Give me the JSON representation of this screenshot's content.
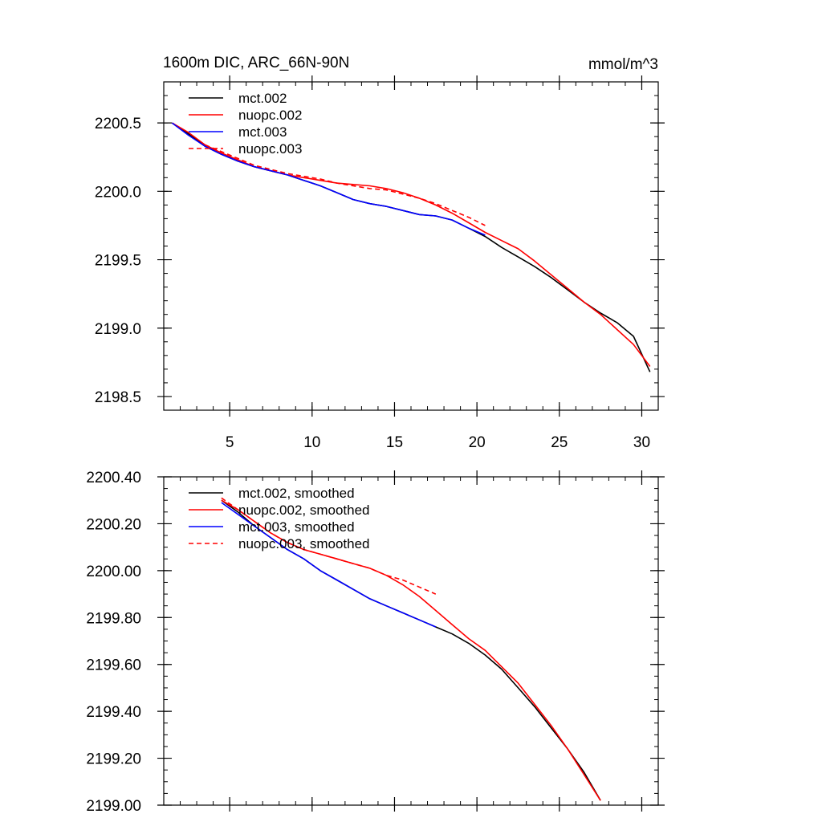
{
  "chart_data": [
    {
      "type": "line",
      "title": "1600m DIC, ARC_66N-90N",
      "units_label": "mmol/m^3",
      "xlim": [
        1,
        31
      ],
      "ylim": [
        2198.4,
        2200.8
      ],
      "x_ticks": [
        5,
        10,
        15,
        20,
        25,
        30
      ],
      "x_tick_labels": [
        "5",
        "10",
        "15",
        "20",
        "25",
        "30"
      ],
      "y_ticks": [
        2198.5,
        2199.0,
        2199.5,
        2200.0,
        2200.5
      ],
      "y_tick_labels": [
        "2198.5",
        "2199.0",
        "2199.5",
        "2200.0",
        "2200.5"
      ],
      "legend_placement": "top-left",
      "series": [
        {
          "name": "mct.002",
          "color": "#000000",
          "dash": "solid",
          "x": [
            1.5,
            2.5,
            3.5,
            4.5,
            5.5,
            6.5,
            7.5,
            8.5,
            9.5,
            10.5,
            11.5,
            12.5,
            13.5,
            14.5,
            15.5,
            16.5,
            17.5,
            18.5,
            19.5,
            20.5,
            21.5,
            22.5,
            23.5,
            24.5,
            25.5,
            26.5,
            27.5,
            28.5,
            29.5,
            30.5
          ],
          "values": [
            2200.5,
            2200.42,
            2200.33,
            2200.27,
            2200.22,
            2200.18,
            2200.15,
            2200.12,
            2200.08,
            2200.04,
            2199.99,
            2199.94,
            2199.91,
            2199.89,
            2199.86,
            2199.83,
            2199.82,
            2199.79,
            2199.73,
            2199.67,
            2199.59,
            2199.52,
            2199.45,
            2199.37,
            2199.28,
            2199.19,
            2199.11,
            2199.04,
            2198.94,
            2198.68
          ]
        },
        {
          "name": "nuopc.002",
          "color": "#ff0000",
          "dash": "solid",
          "x": [
            1.5,
            2.5,
            3.5,
            4.5,
            5.5,
            6.5,
            7.5,
            8.5,
            9.5,
            10.5,
            11.5,
            12.5,
            13.5,
            14.5,
            15.5,
            16.5,
            17.5,
            18.5,
            19.5,
            20.5,
            21.5,
            22.5,
            23.5,
            24.5,
            25.5,
            26.5,
            27.5,
            28.5,
            29.5,
            30.5
          ],
          "values": [
            2200.5,
            2200.43,
            2200.34,
            2200.28,
            2200.23,
            2200.18,
            2200.15,
            2200.12,
            2200.1,
            2200.08,
            2200.06,
            2200.05,
            2200.04,
            2200.02,
            2199.99,
            2199.95,
            2199.9,
            2199.84,
            2199.77,
            2199.7,
            2199.64,
            2199.58,
            2199.49,
            2199.39,
            2199.29,
            2199.19,
            2199.1,
            2198.99,
            2198.88,
            2198.72
          ]
        },
        {
          "name": "mct.003",
          "color": "#0000ff",
          "dash": "solid",
          "x": [
            1.5,
            2.5,
            3.5,
            4.5,
            5.5,
            6.5,
            7.5,
            8.5,
            9.5,
            10.5,
            11.5,
            12.5,
            13.5,
            14.5,
            15.5,
            16.5,
            17.5,
            18.5,
            19.5,
            20.5
          ],
          "values": [
            2200.5,
            2200.41,
            2200.33,
            2200.27,
            2200.22,
            2200.18,
            2200.15,
            2200.12,
            2200.08,
            2200.04,
            2199.99,
            2199.94,
            2199.91,
            2199.89,
            2199.86,
            2199.83,
            2199.82,
            2199.79,
            2199.73,
            2199.68
          ]
        },
        {
          "name": "nuopc.003",
          "color": "#ff0000",
          "dash": "dashed",
          "x": [
            3.5,
            4.5,
            5.5,
            6.5,
            7.5,
            8.5,
            9.5,
            10.5,
            11.5,
            12.5,
            13.5,
            14.5,
            15.5,
            16.5,
            17.5,
            18.5,
            19.5,
            20.5
          ],
          "values": [
            2200.34,
            2200.29,
            2200.24,
            2200.19,
            2200.16,
            2200.13,
            2200.11,
            2200.09,
            2200.06,
            2200.04,
            2200.02,
            2200.01,
            2199.98,
            2199.95,
            2199.91,
            2199.86,
            2199.81,
            2199.75
          ]
        }
      ]
    },
    {
      "type": "line",
      "title": "",
      "xlim": [
        1,
        31
      ],
      "ylim": [
        2199.0,
        2200.4
      ],
      "x_ticks": [
        5,
        10,
        15,
        20,
        25,
        30
      ],
      "y_ticks": [
        2199.0,
        2199.2,
        2199.4,
        2199.6,
        2199.8,
        2200.0,
        2200.2,
        2200.4
      ],
      "y_tick_labels": [
        "2199.00",
        "2199.20",
        "2199.40",
        "2199.60",
        "2199.80",
        "2200.00",
        "2200.20",
        "2200.40"
      ],
      "legend_placement": "top-left",
      "series": [
        {
          "name": "mct.002, smoothed",
          "color": "#000000",
          "dash": "solid",
          "x": [
            4.5,
            5.5,
            6.5,
            7.5,
            8.5,
            9.5,
            10.5,
            11.5,
            12.5,
            13.5,
            14.5,
            15.5,
            16.5,
            17.5,
            18.5,
            19.5,
            20.5,
            21.5,
            22.5,
            23.5,
            24.5,
            25.5,
            26.5,
            27.5
          ],
          "values": [
            2200.3,
            2200.25,
            2200.19,
            2200.14,
            2200.09,
            2200.05,
            2200.0,
            2199.96,
            2199.92,
            2199.88,
            2199.85,
            2199.82,
            2199.79,
            2199.76,
            2199.73,
            2199.69,
            2199.64,
            2199.58,
            2199.5,
            2199.42,
            2199.33,
            2199.24,
            2199.14,
            2199.02
          ]
        },
        {
          "name": "nuopc.002, smoothed",
          "color": "#ff0000",
          "dash": "solid",
          "x": [
            4.5,
            5.5,
            6.5,
            7.5,
            8.5,
            9.5,
            10.5,
            11.5,
            12.5,
            13.5,
            14.5,
            15.5,
            16.5,
            17.5,
            18.5,
            19.5,
            20.5,
            21.5,
            22.5,
            23.5,
            24.5,
            25.5,
            26.5,
            27.5
          ],
          "values": [
            2200.3,
            2200.26,
            2200.21,
            2200.16,
            2200.12,
            2200.09,
            2200.07,
            2200.05,
            2200.03,
            2200.01,
            2199.98,
            2199.94,
            2199.89,
            2199.83,
            2199.77,
            2199.71,
            2199.66,
            2199.59,
            2199.52,
            2199.43,
            2199.34,
            2199.24,
            2199.13,
            2199.02
          ]
        },
        {
          "name": "mct.003, smoothed",
          "color": "#0000ff",
          "dash": "solid",
          "x": [
            4.5,
            5.5,
            6.5,
            7.5,
            8.5,
            9.5,
            10.5,
            11.5,
            12.5,
            13.5,
            14.5,
            15.5,
            16.5,
            17.5
          ],
          "values": [
            2200.29,
            2200.24,
            2200.19,
            2200.14,
            2200.09,
            2200.05,
            2200.0,
            2199.96,
            2199.92,
            2199.88,
            2199.85,
            2199.82,
            2199.79,
            2199.76
          ]
        },
        {
          "name": "nuopc.003, smoothed",
          "color": "#ff0000",
          "dash": "dashed",
          "x": [
            4.5,
            5.5,
            6.5,
            7.5,
            8.5,
            9.5,
            10.5,
            11.5,
            12.5,
            13.5,
            14.5,
            15.5,
            16.5,
            17.5
          ],
          "values": [
            2200.31,
            2200.26,
            2200.21,
            2200.16,
            2200.12,
            2200.09,
            2200.07,
            2200.05,
            2200.03,
            2200.01,
            2199.98,
            2199.96,
            2199.93,
            2199.9
          ]
        }
      ]
    }
  ]
}
